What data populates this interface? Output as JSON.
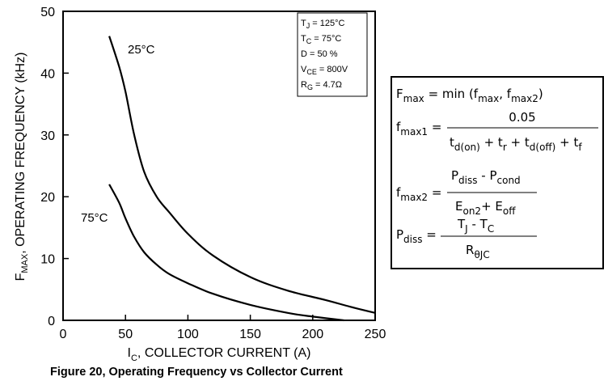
{
  "chart_data": {
    "type": "line",
    "title": "",
    "caption": "Figure 20, Operating  Frequency  vs Collector  Current",
    "xlabel": {
      "main": "I",
      "sub": "C",
      "rest": ", COLLECTOR CURRENT (A)"
    },
    "ylabel": {
      "main": "F",
      "sub": "MAX",
      "rest": ", OPERATING FREQUENCY (kHz)"
    },
    "xlim": [
      0,
      250
    ],
    "ylim": [
      0,
      50
    ],
    "x_ticks": [
      0,
      50,
      100,
      150,
      200,
      250
    ],
    "y_ticks": [
      0,
      10,
      20,
      30,
      40,
      50
    ],
    "grid": false,
    "series": [
      {
        "name": "25°C",
        "x": [
          37,
          45,
          50,
          57,
          65,
          75,
          85,
          100,
          120,
          150,
          180,
          210,
          230,
          250
        ],
        "y": [
          46,
          41,
          37,
          30,
          24,
          20,
          17.5,
          14,
          10.5,
          7,
          4.8,
          3.3,
          2.2,
          1.2
        ]
      },
      {
        "name": "75°C",
        "x": [
          37,
          45,
          50,
          57,
          65,
          75,
          85,
          100,
          120,
          150,
          180,
          200,
          225
        ],
        "y": [
          22,
          19,
          16.5,
          13.5,
          11,
          9,
          7.5,
          6,
          4.3,
          2.5,
          1.2,
          0.6,
          0
        ]
      }
    ],
    "conditions": [
      {
        "main": "T",
        "sub": "J",
        "value": " =  125°C"
      },
      {
        "main": "T",
        "sub": "C",
        "value": " =  75°C"
      },
      {
        "main": "D",
        "sub": "",
        "value": " = 50 %"
      },
      {
        "main": "V",
        "sub": "CE",
        "value": " =  800V"
      },
      {
        "main": "R",
        "sub": "G",
        "value": " = 4.7Ω"
      }
    ]
  },
  "formulas": {
    "fmax": {
      "lhs": "F",
      "lhs_sub": "max",
      "rhs_a": " = min (f",
      "rhs_a_sub": "max",
      "rhs_b": ", f",
      "rhs_b_sub": "max2",
      "rhs_c": ")"
    },
    "fmax1": {
      "lhs": "f",
      "lhs_sub": "max1",
      "num": "0.05",
      "den": "t d(on) + t r + t d(off) + t f"
    },
    "fmax2": {
      "lhs": "f",
      "lhs_sub": "max2",
      "num": "P diss - P cond",
      "den": "E on2 + E off"
    },
    "pdiss": {
      "lhs": "P",
      "lhs_sub": "diss",
      "num": "T J - T C",
      "den": "R θJC"
    }
  }
}
